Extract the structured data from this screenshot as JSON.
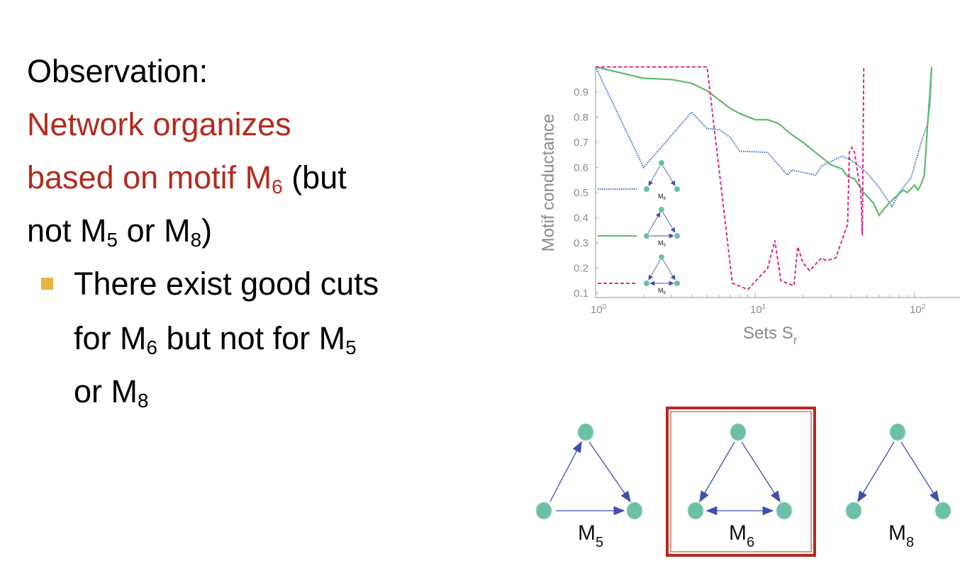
{
  "slide": {
    "heading": "Observation:",
    "line1": "Network organizes",
    "line2_red": "based on motif M",
    "line2_red_sub": "6",
    "line2_rest": " (but",
    "line3_a": "not M",
    "line3_sub1": "5",
    "line3_b": " or M",
    "line3_sub2": "8",
    "line3_c": ")",
    "bullet_line1": "There exist good cuts",
    "bullet_line2_a": "for M",
    "bullet_line2_sub1": "6",
    "bullet_line2_b": " but not for M",
    "bullet_line2_sub2": "5",
    "bullet_line3_a": "or M",
    "bullet_line3_sub": "8",
    "accent_color": "#B42A1E",
    "bullet_color": "#E8B443"
  },
  "motifs": [
    {
      "name": "M",
      "sub": "5",
      "highlighted": false
    },
    {
      "name": "M",
      "sub": "6",
      "highlighted": true
    },
    {
      "name": "M",
      "sub": "8",
      "highlighted": false
    }
  ],
  "chart_data": {
    "type": "line",
    "xlabel": "Sets S",
    "xlabel_sub": "r",
    "ylabel": "Motif conductance",
    "xscale": "log",
    "xlim": [
      1,
      190
    ],
    "ylim": [
      0.09,
      1.0
    ],
    "xticks": [
      {
        "value": 1,
        "base": "10",
        "exp": "0"
      },
      {
        "value": 10,
        "base": "10",
        "exp": "1"
      },
      {
        "value": 100,
        "base": "10",
        "exp": "2"
      }
    ],
    "yticks": [
      "0.1",
      "0.2",
      "0.3",
      "0.4",
      "0.5",
      "0.6",
      "0.7",
      "0.8",
      "0.9"
    ],
    "grid": false,
    "legend_placement": "left (inline motif icons)",
    "series": [
      {
        "name": "M8",
        "legend_label": "M",
        "legend_sub": "8",
        "color": "#3A6FC4",
        "style": "dotted",
        "x": [
          1,
          2,
          4,
          5,
          6,
          7,
          8,
          12,
          14,
          16,
          17,
          20,
          24,
          26,
          35,
          40,
          50,
          60,
          72,
          80,
          95,
          110,
          120,
          125,
          128
        ],
        "y": [
          1.0,
          0.6,
          0.82,
          0.755,
          0.75,
          0.72,
          0.665,
          0.66,
          0.61,
          0.57,
          0.59,
          0.58,
          0.57,
          0.605,
          0.645,
          0.63,
          0.58,
          0.52,
          0.445,
          0.5,
          0.56,
          0.7,
          0.77,
          0.85,
          1.0
        ]
      },
      {
        "name": "M5",
        "legend_label": "M",
        "legend_sub": "5",
        "color": "#5DBB6E",
        "style": "solid",
        "x": [
          1,
          2,
          3,
          4,
          5,
          7,
          8,
          10,
          12,
          14,
          17,
          20,
          25,
          30,
          35,
          38,
          42,
          48,
          55,
          60,
          65,
          75,
          85,
          90,
          100,
          105,
          110,
          115,
          120,
          128
        ],
        "y": [
          1.0,
          0.955,
          0.95,
          0.935,
          0.905,
          0.835,
          0.815,
          0.79,
          0.79,
          0.775,
          0.73,
          0.7,
          0.65,
          0.61,
          0.595,
          0.565,
          0.555,
          0.5,
          0.46,
          0.41,
          0.44,
          0.48,
          0.51,
          0.5,
          0.53,
          0.51,
          0.535,
          0.57,
          0.75,
          1.0
        ]
      },
      {
        "name": "M6",
        "legend_label": "M",
        "legend_sub": "6",
        "color": "#E0288A",
        "style": "dashed",
        "x": [
          1,
          5,
          7.2,
          9,
          12,
          13.3,
          14.5,
          17.5,
          18.5,
          20,
          22,
          26,
          28,
          32,
          38,
          39,
          40.5,
          42,
          46,
          47,
          48
        ],
        "y": [
          1.0,
          1.0,
          0.14,
          0.115,
          0.2,
          0.31,
          0.15,
          0.13,
          0.285,
          0.22,
          0.19,
          0.24,
          0.23,
          0.24,
          0.375,
          0.66,
          0.68,
          0.66,
          0.5,
          0.33,
          1.0
        ]
      }
    ]
  },
  "colors": {
    "node": "#6DC0A8",
    "edge": "#3F4FAE",
    "highlight_box": "#B42A1E",
    "axis_text": "#8a8a8a"
  }
}
